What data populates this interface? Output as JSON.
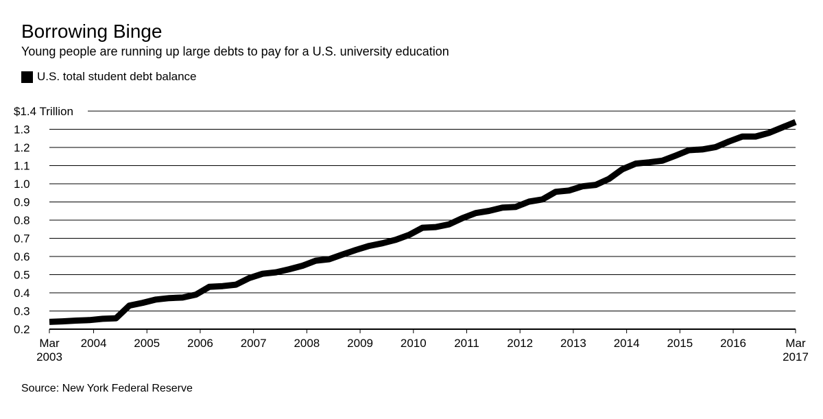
{
  "chart_data": {
    "type": "line",
    "title": "Borrowing Binge",
    "subtitle": "Young people are running up large debts to pay for a U.S. university education",
    "source": "Source: New York Federal Reserve",
    "legend": [
      {
        "name": "U.S. total student debt balance",
        "color": "#000000"
      }
    ],
    "ylim": [
      0.2,
      1.4
    ],
    "xlim": [
      2003.17,
      2017.17
    ],
    "y_ticks": [
      {
        "value": 1.4,
        "label": "$1.4 Trillion"
      },
      {
        "value": 1.3,
        "label": "1.3"
      },
      {
        "value": 1.2,
        "label": "1.2"
      },
      {
        "value": 1.1,
        "label": "1.1"
      },
      {
        "value": 1.0,
        "label": "1.0"
      },
      {
        "value": 0.9,
        "label": "0.9"
      },
      {
        "value": 0.8,
        "label": "0.8"
      },
      {
        "value": 0.7,
        "label": "0.7"
      },
      {
        "value": 0.6,
        "label": "0.6"
      },
      {
        "value": 0.5,
        "label": "0.5"
      },
      {
        "value": 0.4,
        "label": "0.4"
      },
      {
        "value": 0.3,
        "label": "0.3"
      },
      {
        "value": 0.2,
        "label": "0.2"
      }
    ],
    "x_ticks": [
      {
        "value": 2003.17,
        "label": "Mar",
        "label2": "2003"
      },
      {
        "value": 2004,
        "label": "2004"
      },
      {
        "value": 2005,
        "label": "2005"
      },
      {
        "value": 2006,
        "label": "2006"
      },
      {
        "value": 2007,
        "label": "2007"
      },
      {
        "value": 2008,
        "label": "2008"
      },
      {
        "value": 2009,
        "label": "2009"
      },
      {
        "value": 2010,
        "label": "2010"
      },
      {
        "value": 2011,
        "label": "2011"
      },
      {
        "value": 2012,
        "label": "2012"
      },
      {
        "value": 2013,
        "label": "2013"
      },
      {
        "value": 2014,
        "label": "2014"
      },
      {
        "value": 2015,
        "label": "2015"
      },
      {
        "value": 2016,
        "label": "2016"
      },
      {
        "value": 2017.17,
        "label": "Mar",
        "label2": "2017"
      }
    ],
    "series": [
      {
        "name": "U.S. total student debt balance",
        "x": [
          2003.17,
          2003.42,
          2003.67,
          2003.92,
          2004.17,
          2004.42,
          2004.67,
          2004.92,
          2005.17,
          2005.42,
          2005.67,
          2005.92,
          2006.17,
          2006.42,
          2006.67,
          2006.92,
          2007.17,
          2007.42,
          2007.67,
          2007.92,
          2008.17,
          2008.42,
          2008.67,
          2008.92,
          2009.17,
          2009.42,
          2009.67,
          2009.92,
          2010.17,
          2010.42,
          2010.67,
          2010.92,
          2011.17,
          2011.42,
          2011.67,
          2011.92,
          2012.17,
          2012.42,
          2012.67,
          2012.92,
          2013.17,
          2013.42,
          2013.67,
          2013.92,
          2014.17,
          2014.42,
          2014.67,
          2014.92,
          2015.17,
          2015.42,
          2015.67,
          2015.92,
          2016.17,
          2016.42,
          2016.67,
          2016.92,
          2017.17
        ],
        "values": [
          0.24,
          0.243,
          0.247,
          0.25,
          0.257,
          0.26,
          0.33,
          0.345,
          0.363,
          0.371,
          0.374,
          0.39,
          0.433,
          0.437,
          0.445,
          0.481,
          0.505,
          0.513,
          0.53,
          0.549,
          0.577,
          0.585,
          0.611,
          0.636,
          0.658,
          0.673,
          0.692,
          0.719,
          0.758,
          0.762,
          0.777,
          0.811,
          0.839,
          0.851,
          0.869,
          0.873,
          0.902,
          0.914,
          0.956,
          0.963,
          0.986,
          0.994,
          1.027,
          1.08,
          1.111,
          1.118,
          1.127,
          1.155,
          1.185,
          1.189,
          1.202,
          1.233,
          1.26,
          1.26,
          1.28,
          1.31,
          1.34
        ]
      }
    ]
  }
}
